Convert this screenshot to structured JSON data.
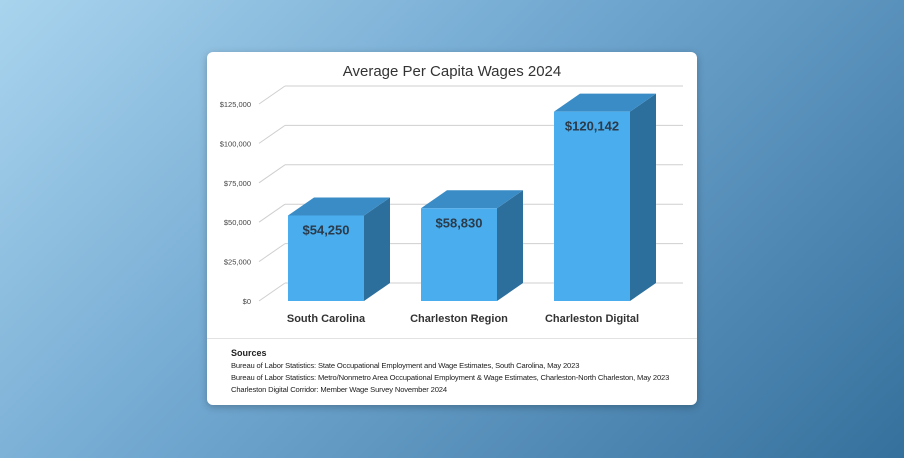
{
  "chart_data": {
    "type": "bar",
    "title": "Average Per Capita Wages 2024",
    "categories": [
      "South Carolina",
      "Charleston Region",
      "Charleston Digital"
    ],
    "values": [
      54250,
      58830,
      120142
    ],
    "data_labels": [
      "$54,250",
      "$58,830",
      "$120,142"
    ],
    "ylim": [
      0,
      125000
    ],
    "yticks": [
      0,
      25000,
      50000,
      75000,
      100000,
      125000
    ],
    "ytick_labels": [
      "$0",
      "$25,000",
      "$50,000",
      "$75,000",
      "$100,000",
      "$125,000"
    ],
    "xlabel": "",
    "ylabel": "",
    "grid": true
  },
  "colors": {
    "bar_front": "#4aaeee",
    "bar_side": "#2c6e9c",
    "bar_top": "#3a8cc6",
    "grid": "#cfcfcf"
  },
  "sources": {
    "heading": "Sources",
    "lines": [
      "Bureau of Labor Statistics: State Occupational Employment and Wage Estimates, South Carolina, May 2023",
      "Bureau of Labor Statistics: Metro/Nonmetro Area Occupational Employment & Wage Estimates, Charleston-North Charleston, May 2023",
      "Charleston Digital Corridor: Member Wage Survey November 2024"
    ]
  }
}
